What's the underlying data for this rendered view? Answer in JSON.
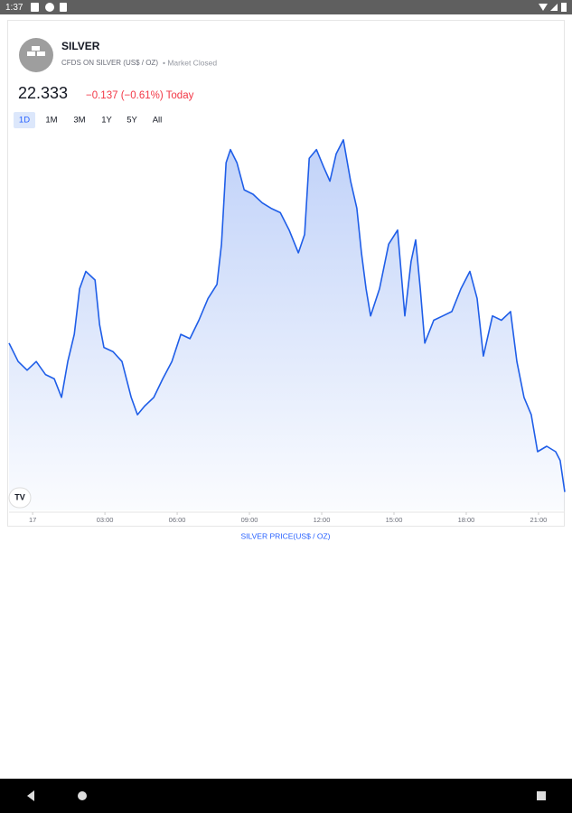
{
  "status_bar": {
    "time": "1:37"
  },
  "header": {
    "title": "SILVER",
    "subtitle": "CFDS ON SILVER (US$ / OZ)",
    "status": "• Market Closed"
  },
  "quote": {
    "price": "22.333",
    "change": "−0.137 (−0.61%) Today"
  },
  "ranges": [
    "1D",
    "1M",
    "3M",
    "1Y",
    "5Y",
    "All"
  ],
  "logo": "TV",
  "caption": "SILVER PRICE(US$ / OZ)",
  "chart_data": {
    "type": "line",
    "color": "#1f5ee8",
    "xlim": [
      -0.98,
      22.09
    ],
    "ylim": [
      22.316,
      22.661
    ],
    "xticks": [
      {
        "value": 0,
        "label": "17"
      },
      {
        "value": 3,
        "label": "03:00"
      },
      {
        "value": 6,
        "label": "06:00"
      },
      {
        "value": 9,
        "label": "09:00"
      },
      {
        "value": 12,
        "label": "12:00"
      },
      {
        "value": 15,
        "label": "15:00"
      },
      {
        "value": 18,
        "label": "18:00"
      },
      {
        "value": 21,
        "label": "21:00"
      }
    ],
    "x": [
      -0.98,
      -0.6,
      -0.23,
      0.15,
      0.53,
      0.9,
      1.2,
      1.46,
      1.73,
      1.95,
      2.21,
      2.59,
      2.78,
      2.96,
      3.34,
      3.71,
      4.09,
      4.35,
      4.65,
      5.03,
      5.4,
      5.78,
      6.15,
      6.53,
      6.9,
      7.28,
      7.65,
      7.84,
      8.03,
      8.21,
      8.48,
      8.78,
      9.15,
      9.53,
      9.9,
      10.28,
      10.65,
      11.03,
      11.29,
      11.48,
      11.78,
      12.08,
      12.34,
      12.6,
      12.9,
      13.2,
      13.46,
      13.65,
      13.84,
      14.03,
      14.4,
      14.78,
      15.15,
      15.45,
      15.71,
      15.9,
      16.09,
      16.28,
      16.65,
      17.03,
      17.4,
      17.78,
      18.15,
      18.45,
      18.71,
      19.09,
      19.46,
      19.84,
      20.1,
      20.4,
      20.7,
      20.96,
      21.34,
      21.71,
      21.9,
      22.09
    ],
    "values": [
      22.47,
      22.453,
      22.445,
      22.453,
      22.441,
      22.437,
      22.42,
      22.453,
      22.478,
      22.52,
      22.536,
      22.528,
      22.487,
      22.466,
      22.462,
      22.453,
      22.42,
      22.404,
      22.412,
      22.42,
      22.437,
      22.453,
      22.478,
      22.474,
      22.491,
      22.511,
      22.524,
      22.561,
      22.636,
      22.648,
      22.636,
      22.611,
      22.607,
      22.599,
      22.594,
      22.59,
      22.574,
      22.553,
      22.57,
      22.64,
      22.648,
      22.632,
      22.619,
      22.644,
      22.657,
      22.619,
      22.594,
      22.553,
      22.52,
      22.495,
      22.52,
      22.561,
      22.574,
      22.495,
      22.545,
      22.565,
      22.52,
      22.47,
      22.491,
      22.495,
      22.499,
      22.52,
      22.536,
      22.511,
      22.458,
      22.495,
      22.491,
      22.499,
      22.453,
      22.42,
      22.404,
      22.37,
      22.375,
      22.37,
      22.362,
      22.333
    ]
  }
}
